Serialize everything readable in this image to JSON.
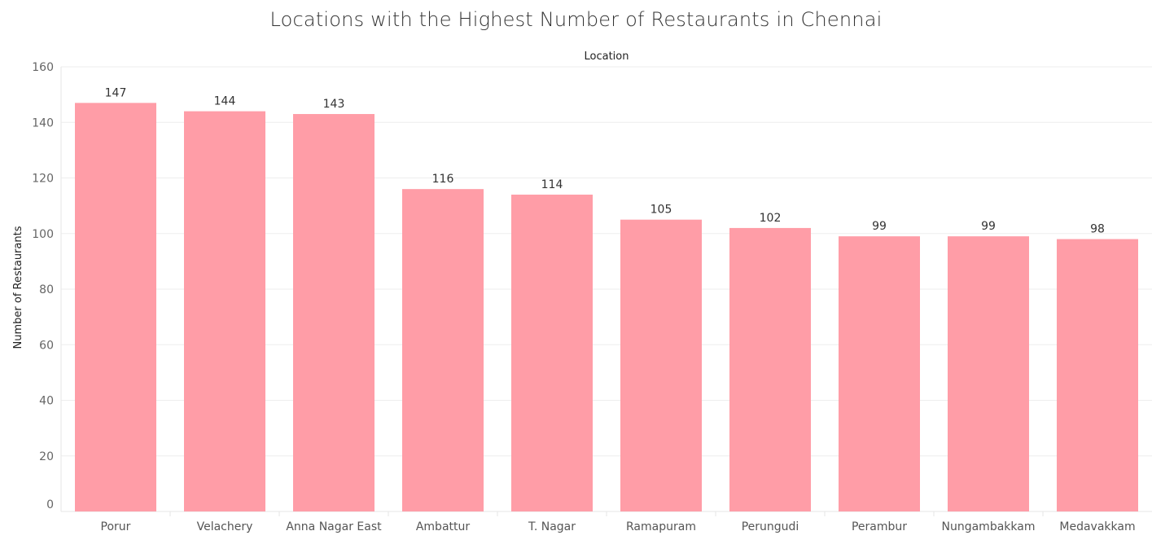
{
  "chart_data": {
    "type": "bar",
    "title": "Locations with the Highest Number of Restaurants in Chennai",
    "column_header": "Location",
    "xlabel": "",
    "ylabel": "Number of Restaurants",
    "categories": [
      "Porur",
      "Velachery",
      "Anna Nagar East",
      "Ambattur",
      "T. Nagar",
      "Ramapuram",
      "Perungudi",
      "Perambur",
      "Nungambakkam",
      "Medavakkam"
    ],
    "values": [
      147,
      144,
      143,
      116,
      114,
      105,
      102,
      99,
      99,
      98
    ],
    "ylim": [
      0,
      160
    ],
    "yticks": [
      0,
      20,
      40,
      60,
      80,
      100,
      120,
      140,
      160
    ],
    "grid": true,
    "bar_color": "#FF9DA7",
    "show_data_labels": true
  }
}
